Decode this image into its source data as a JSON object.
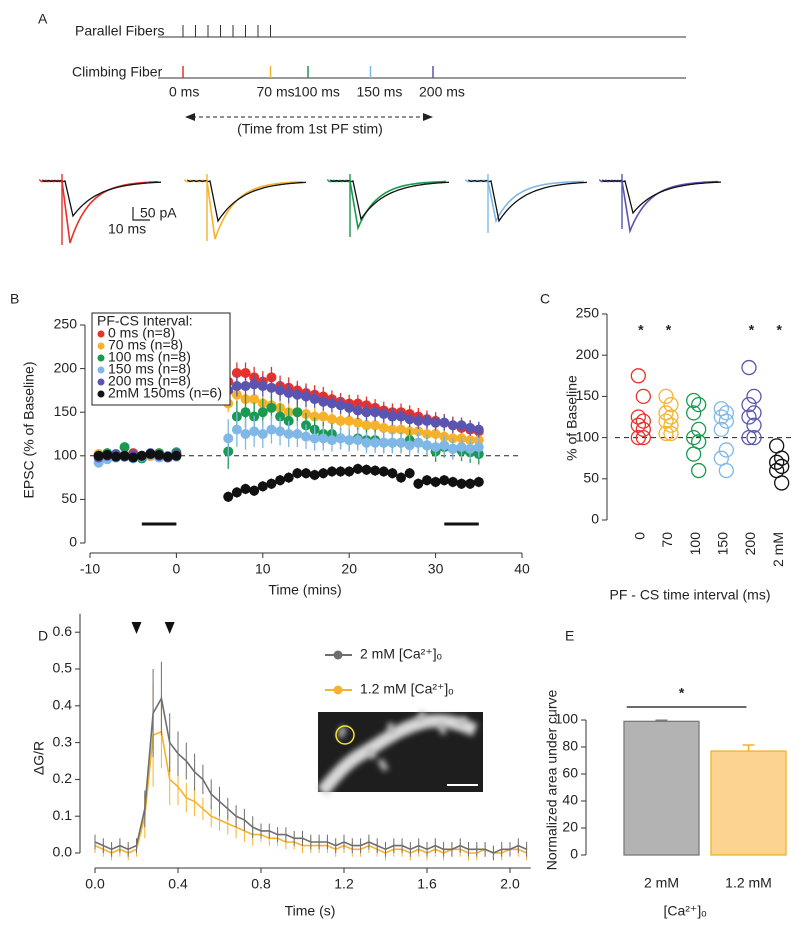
{
  "panel_labels": [
    "A",
    "B",
    "C",
    "D",
    "E"
  ],
  "diagram": {
    "parallel_fibers": {
      "label": "Parallel Fibers",
      "stims": [
        0,
        10,
        20,
        30,
        40,
        50,
        60,
        70
      ]
    },
    "climbing_fiber": {
      "label": "Climbing Fiber",
      "intervals": [
        {
          "value": 0,
          "label": "0 ms",
          "color": "#e8312a"
        },
        {
          "value": 70,
          "label": "70 ms",
          "color": "#f7b22c"
        },
        {
          "value": 100,
          "label": "100 ms",
          "color": "#1a9a50"
        },
        {
          "value": 150,
          "label": "150 ms",
          "color": "#7fb8e6"
        },
        {
          "value": 200,
          "label": "200 ms",
          "color": "#5a55b0"
        }
      ]
    },
    "arrow_label": "(Time from 1st PF stim)",
    "trace_color": "#111111",
    "scale_bar": {
      "y_label": "50 pA",
      "x_label": "10 ms"
    }
  },
  "chart_data": [
    {
      "type": "scatter",
      "x": [
        -9,
        -8,
        -7,
        -6,
        -5,
        -4,
        -3,
        -2,
        -1,
        0,
        6,
        7,
        8,
        9,
        10,
        11,
        12,
        13,
        14,
        15,
        16,
        17,
        18,
        19,
        20,
        21,
        22,
        23,
        24,
        25,
        26,
        27,
        28,
        29,
        30,
        31,
        32,
        33,
        34,
        35
      ],
      "legend_title": "PF-CS Interval:",
      "legend": "upper left",
      "series": [
        {
          "name": "0 ms (n=8)",
          "color": "#e8312a",
          "values": [
            100,
            98,
            101,
            100,
            103,
            99,
            100,
            102,
            98,
            101,
            185,
            195,
            195,
            190,
            185,
            190,
            180,
            178,
            175,
            172,
            170,
            168,
            165,
            162,
            160,
            160,
            158,
            155,
            152,
            150,
            150,
            148,
            145,
            142,
            140,
            138,
            135,
            132,
            130,
            128
          ],
          "errors": [
            4,
            4,
            4,
            4,
            4,
            4,
            4,
            4,
            4,
            4,
            14,
            12,
            12,
            12,
            12,
            12,
            12,
            12,
            11,
            11,
            11,
            11,
            10,
            10,
            10,
            10,
            10,
            10,
            10,
            10,
            10,
            10,
            10,
            10,
            10,
            10,
            10,
            10,
            10,
            10
          ]
        },
        {
          "name": "70 ms (n=8)",
          "color": "#f7b22c",
          "values": [
            102,
            100,
            99,
            101,
            100,
            98,
            100,
            101,
            99,
            100,
            160,
            170,
            165,
            165,
            160,
            158,
            155,
            150,
            150,
            148,
            145,
            145,
            142,
            140,
            140,
            138,
            135,
            135,
            132,
            130,
            130,
            128,
            128,
            125,
            125,
            122,
            120,
            120,
            118,
            118
          ],
          "errors": [
            3,
            3,
            3,
            3,
            3,
            3,
            3,
            3,
            3,
            3,
            10,
            10,
            10,
            10,
            10,
            10,
            10,
            10,
            10,
            10,
            10,
            10,
            10,
            10,
            10,
            10,
            10,
            10,
            10,
            10,
            10,
            10,
            10,
            10,
            10,
            10,
            10,
            10,
            10,
            10
          ]
        },
        {
          "name": "100 ms (n=8)",
          "color": "#1a9a50",
          "values": [
            100,
            103,
            98,
            110,
            100,
            97,
            101,
            103,
            99,
            104,
            105,
            145,
            150,
            145,
            150,
            155,
            145,
            140,
            150,
            135,
            130,
            125,
            125,
            120,
            118,
            120,
            118,
            118,
            115,
            115,
            115,
            118,
            115,
            112,
            105,
            110,
            108,
            106,
            104,
            102
          ],
          "errors": [
            4,
            4,
            4,
            4,
            4,
            4,
            4,
            4,
            4,
            4,
            20,
            18,
            18,
            16,
            16,
            15,
            15,
            15,
            15,
            14,
            14,
            14,
            12,
            12,
            12,
            12,
            12,
            12,
            12,
            12,
            12,
            12,
            12,
            12,
            12,
            12,
            12,
            12,
            12,
            12
          ]
        },
        {
          "name": "150 ms (n=8)",
          "color": "#7fb8e6",
          "values": [
            92,
            96,
            98,
            100,
            97,
            99,
            101,
            98,
            100,
            99,
            120,
            130,
            125,
            128,
            125,
            130,
            128,
            125,
            125,
            122,
            120,
            120,
            118,
            120,
            118,
            118,
            115,
            115,
            115,
            115,
            115,
            112,
            115,
            112,
            110,
            112,
            108,
            110,
            108,
            110
          ],
          "errors": [
            4,
            4,
            4,
            4,
            4,
            4,
            4,
            4,
            4,
            4,
            22,
            20,
            18,
            18,
            16,
            16,
            16,
            15,
            15,
            14,
            14,
            14,
            13,
            13,
            13,
            12,
            12,
            12,
            12,
            12,
            12,
            12,
            12,
            12,
            12,
            12,
            12,
            12,
            12,
            12
          ]
        },
        {
          "name": "200 ms (n=8)",
          "color": "#5a55b0",
          "values": [
            98,
            100,
            102,
            99,
            101,
            100,
            103,
            100,
            98,
            102,
            175,
            180,
            180,
            182,
            180,
            178,
            175,
            172,
            170,
            168,
            165,
            162,
            160,
            158,
            155,
            152,
            150,
            150,
            148,
            145,
            145,
            142,
            140,
            140,
            138,
            138,
            135,
            135,
            132,
            130
          ],
          "errors": [
            3,
            3,
            3,
            3,
            3,
            3,
            3,
            3,
            3,
            3,
            12,
            12,
            12,
            12,
            12,
            12,
            12,
            12,
            12,
            12,
            10,
            10,
            10,
            10,
            10,
            10,
            10,
            10,
            10,
            10,
            9,
            9,
            9,
            9,
            9,
            9,
            9,
            9,
            9,
            9
          ]
        },
        {
          "name": "2mM 150ms (n=6)",
          "color": "#111111",
          "values": [
            100,
            101,
            99,
            100,
            98,
            100,
            102,
            101,
            99,
            100,
            53,
            58,
            62,
            60,
            65,
            68,
            72,
            75,
            80,
            80,
            78,
            80,
            82,
            82,
            82,
            85,
            84,
            83,
            82,
            80,
            75,
            80,
            68,
            72,
            70,
            72,
            70,
            68,
            68,
            70
          ],
          "errors": [
            3,
            3,
            3,
            3,
            3,
            3,
            3,
            3,
            3,
            3,
            6,
            6,
            6,
            6,
            6,
            6,
            6,
            6,
            6,
            6,
            6,
            6,
            6,
            6,
            6,
            6,
            6,
            6,
            6,
            6,
            6,
            6,
            6,
            6,
            6,
            6,
            6,
            6,
            6,
            6
          ]
        }
      ],
      "xlim": [
        -10,
        40
      ],
      "xticks": [
        -10,
        0,
        10,
        20,
        30,
        40
      ],
      "ylim": [
        0,
        250
      ],
      "yticks": [
        0,
        50,
        100,
        150,
        200,
        250
      ],
      "x_label": "Time (mins)",
      "y_label": "EPSC (% of Baseline)",
      "reference_line": 100,
      "period_bars": [
        [
          -4,
          0
        ],
        [
          31,
          35
        ]
      ]
    },
    {
      "type": "strip",
      "categories": [
        "0",
        "70",
        "100",
        "150",
        "200",
        "2 mM"
      ],
      "colors": [
        "#e8312a",
        "#f7b22c",
        "#1a9a50",
        "#7fb8e6",
        "#5a55b0",
        "#111111"
      ],
      "values": [
        [
          175,
          150,
          125,
          120,
          115,
          110,
          100,
          100
        ],
        [
          150,
          140,
          130,
          125,
          120,
          115,
          105,
          105
        ],
        [
          145,
          140,
          130,
          110,
          100,
          95,
          80,
          60
        ],
        [
          135,
          130,
          125,
          120,
          110,
          85,
          75,
          60
        ],
        [
          185,
          150,
          140,
          130,
          125,
          115,
          100,
          100
        ],
        [
          90,
          75,
          70,
          65,
          60,
          45
        ]
      ],
      "ylim": [
        0,
        250
      ],
      "yticks": [
        0,
        50,
        100,
        150,
        200,
        250
      ],
      "x_label": "PF - CS time interval (ms)",
      "y_label": "% of Baseline",
      "reference_line": 100,
      "annotations": [
        {
          "category": 0,
          "label": "*"
        },
        {
          "category": 1,
          "label": "*"
        },
        {
          "category": 4,
          "label": "*"
        },
        {
          "category": 5,
          "label": "*"
        }
      ]
    },
    {
      "type": "line",
      "x": [
        0,
        0.04,
        0.08,
        0.12,
        0.16,
        0.2,
        0.24,
        0.28,
        0.32,
        0.36,
        0.4,
        0.44,
        0.48,
        0.52,
        0.56,
        0.6,
        0.64,
        0.68,
        0.72,
        0.76,
        0.8,
        0.84,
        0.88,
        0.92,
        0.96,
        1,
        1.04,
        1.08,
        1.12,
        1.16,
        1.2,
        1.24,
        1.28,
        1.32,
        1.36,
        1.4,
        1.44,
        1.48,
        1.52,
        1.56,
        1.6,
        1.64,
        1.68,
        1.72,
        1.76,
        1.8,
        1.84,
        1.88,
        1.92,
        1.96,
        2,
        2.04,
        2.08
      ],
      "series": [
        {
          "name": "2 mM [Ca²⁺]ₒ",
          "color": "#6e6e6e",
          "values": [
            0.03,
            0.02,
            0.01,
            0.02,
            0.01,
            0.02,
            0.12,
            0.38,
            0.42,
            0.3,
            0.27,
            0.25,
            0.22,
            0.2,
            0.16,
            0.14,
            0.12,
            0.1,
            0.09,
            0.07,
            0.06,
            0.06,
            0.05,
            0.05,
            0.04,
            0.04,
            0.03,
            0.03,
            0.03,
            0.02,
            0.03,
            0.02,
            0.02,
            0.03,
            0.02,
            0.01,
            0.02,
            0.02,
            0.01,
            0.02,
            0.01,
            0.02,
            0.01,
            0.01,
            0.02,
            0.01,
            0.01,
            0.01,
            0,
            0.01,
            0.01,
            0.02,
            0.01
          ],
          "errors": [
            0.02,
            0.02,
            0.02,
            0.02,
            0.02,
            0.02,
            0.05,
            0.12,
            0.1,
            0.08,
            0.06,
            0.05,
            0.05,
            0.04,
            0.04,
            0.04,
            0.03,
            0.03,
            0.03,
            0.03,
            0.02,
            0.02,
            0.02,
            0.02,
            0.02,
            0.02,
            0.02,
            0.02,
            0.02,
            0.02,
            0.02,
            0.02,
            0.02,
            0.02,
            0.02,
            0.02,
            0.02,
            0.02,
            0.02,
            0.02,
            0.02,
            0.02,
            0.02,
            0.02,
            0.02,
            0.02,
            0.02,
            0.02,
            0.02,
            0.02,
            0.02,
            0.02,
            0.02
          ]
        },
        {
          "name": "1.2 mM [Ca²⁺]ₒ",
          "color": "#f7b22c",
          "values": [
            0.02,
            0.01,
            0,
            0.01,
            0,
            0.01,
            0.1,
            0.32,
            0.33,
            0.2,
            0.18,
            0.15,
            0.14,
            0.12,
            0.1,
            0.09,
            0.08,
            0.07,
            0.06,
            0.05,
            0.05,
            0.04,
            0.04,
            0.03,
            0.03,
            0.02,
            0.02,
            0.02,
            0.02,
            0.01,
            0.02,
            0.01,
            0.01,
            0.02,
            0.01,
            0,
            0.01,
            0.01,
            0,
            0.01,
            0,
            0.01,
            0,
            0.01,
            0.01,
            0,
            0,
            0.01,
            0,
            0,
            0.01,
            0.01,
            0
          ],
          "errors": [
            0.02,
            0.02,
            0.02,
            0.02,
            0.02,
            0.02,
            0.06,
            0.14,
            0.1,
            0.07,
            0.05,
            0.04,
            0.04,
            0.03,
            0.03,
            0.03,
            0.03,
            0.03,
            0.03,
            0.03,
            0.02,
            0.02,
            0.02,
            0.02,
            0.02,
            0.02,
            0.02,
            0.02,
            0.02,
            0.02,
            0.02,
            0.02,
            0.02,
            0.02,
            0.02,
            0.02,
            0.02,
            0.02,
            0.02,
            0.02,
            0.02,
            0.02,
            0.02,
            0.02,
            0.02,
            0.02,
            0.02,
            0.02,
            0.02,
            0.02,
            0.02,
            0.02,
            0.02
          ]
        }
      ],
      "xlim": [
        0,
        2.1
      ],
      "xticks": [
        {
          "value": 0,
          "label": "0.0"
        },
        0.4,
        0.8,
        1.2,
        1.6,
        {
          "value": 2,
          "label": "2.0"
        }
      ],
      "ylim": [
        0,
        0.65
      ],
      "yticks": [
        {
          "value": 0,
          "label": "0.0"
        },
        0.1,
        0.2,
        0.3,
        0.4,
        0.5,
        0.6
      ],
      "x_label": "Time (s)",
      "y_label": "ΔG/R",
      "stim_markers": [
        0.2,
        0.36
      ]
    },
    {
      "type": "bar",
      "categories": [
        "2 mM",
        "1.2 mM"
      ],
      "values": [
        99,
        77
      ],
      "errors": [
        0.8,
        4.5
      ],
      "colors": [
        "#b3b3b3",
        "#fcd48f"
      ],
      "edge_colors": [
        "#7a7a7a",
        "#f5b125"
      ],
      "ylim": [
        0,
        110
      ],
      "yticks": [
        0,
        20,
        40,
        60,
        80,
        100
      ],
      "y_label": "Normalized area under curve",
      "x_label": "[Ca²⁺]ₒ",
      "annotation": "*"
    }
  ]
}
